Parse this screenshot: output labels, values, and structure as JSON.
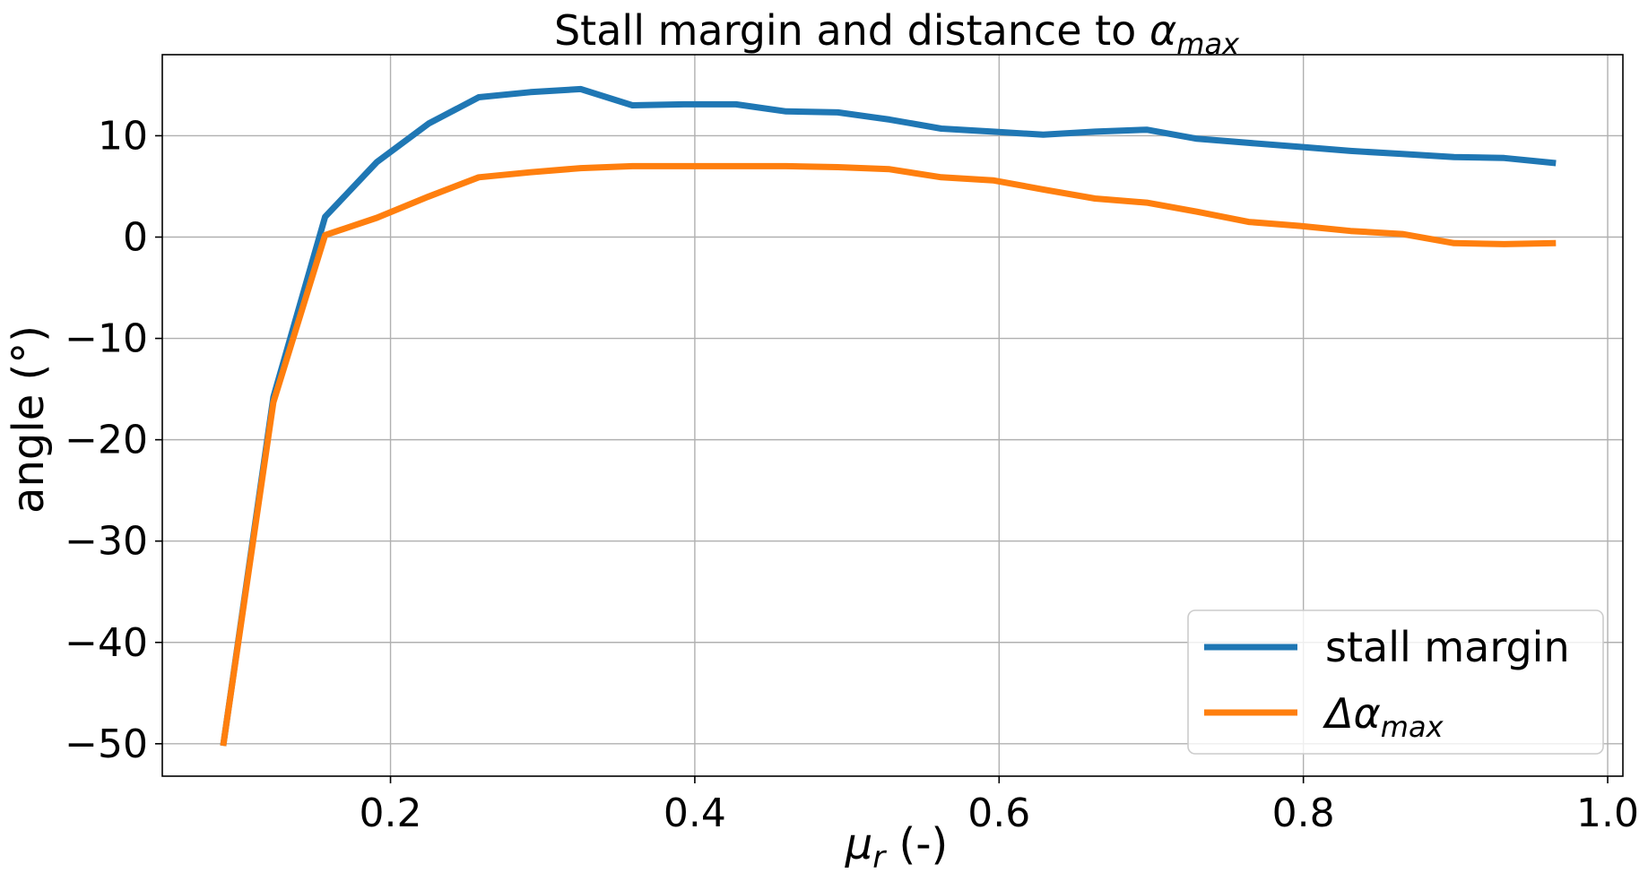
{
  "chart_data": {
    "type": "line",
    "title_prefix": "Stall margin and distance to ",
    "title_symbol": "α",
    "title_subscript": "max",
    "xlabel_symbol": "μ",
    "xlabel_subscript": "r",
    "xlabel_suffix": " (-)",
    "ylabel": "angle (°)",
    "xlim": [
      0.05,
      1.01
    ],
    "ylim": [
      -53.2,
      18.0
    ],
    "xticks": [
      0.2,
      0.4,
      0.6,
      0.8,
      1.0
    ],
    "xtick_labels": [
      "0.2",
      "0.4",
      "0.6",
      "0.8",
      "1.0"
    ],
    "yticks": [
      10,
      0,
      -10,
      -20,
      -30,
      -40,
      -50
    ],
    "ytick_labels": [
      "10",
      "0",
      "−10",
      "−20",
      "−30",
      "−40",
      "−50"
    ],
    "grid": true,
    "legend_position": "bottom-right",
    "series": [
      {
        "name": "stall margin",
        "legend_symbol": "",
        "legend_subscript": "",
        "color": "#1f77b4",
        "x": [
          0.09,
          0.123,
          0.157,
          0.191,
          0.225,
          0.258,
          0.292,
          0.325,
          0.359,
          0.393,
          0.427,
          0.46,
          0.494,
          0.528,
          0.562,
          0.596,
          0.629,
          0.663,
          0.697,
          0.73,
          0.764,
          0.798,
          0.831,
          0.865,
          0.899,
          0.932,
          0.966
        ],
        "y": [
          -50.2,
          -15.8,
          2.0,
          7.4,
          11.2,
          13.8,
          14.3,
          14.6,
          13.0,
          13.1,
          13.1,
          12.4,
          12.3,
          11.6,
          10.7,
          10.4,
          10.1,
          10.4,
          10.6,
          9.7,
          9.3,
          8.9,
          8.5,
          8.2,
          7.9,
          7.8,
          7.3
        ]
      },
      {
        "name": "",
        "legend_symbol": "Δα",
        "legend_subscript": "max",
        "color": "#ff7f0e",
        "x": [
          0.09,
          0.123,
          0.157,
          0.191,
          0.225,
          0.258,
          0.292,
          0.325,
          0.359,
          0.393,
          0.427,
          0.46,
          0.494,
          0.528,
          0.562,
          0.596,
          0.629,
          0.663,
          0.697,
          0.73,
          0.764,
          0.798,
          0.831,
          0.865,
          0.899,
          0.932,
          0.966
        ],
        "y": [
          -50.2,
          -16.3,
          0.2,
          1.9,
          4.0,
          5.9,
          6.4,
          6.8,
          7.0,
          7.0,
          7.0,
          7.0,
          6.9,
          6.7,
          5.9,
          5.6,
          4.7,
          3.8,
          3.4,
          2.5,
          1.5,
          1.1,
          0.6,
          0.3,
          -0.6,
          -0.7,
          -0.6
        ]
      }
    ]
  }
}
